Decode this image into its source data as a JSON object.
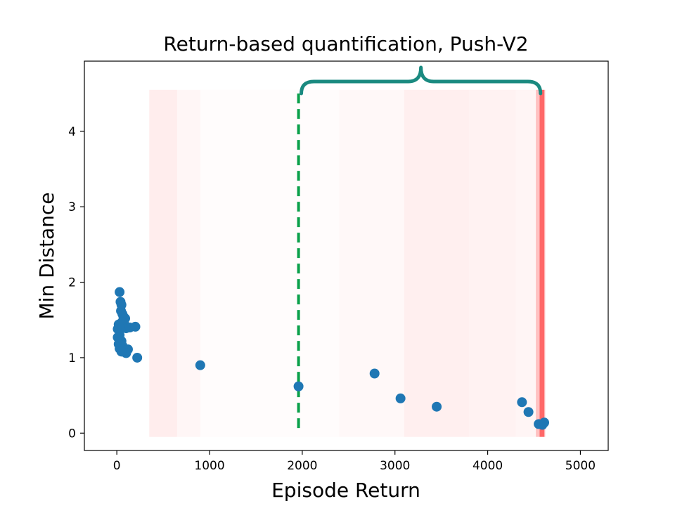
{
  "chart_data": {
    "type": "scatter",
    "title": "Return-based quantification, Push-V2",
    "xlabel": "Episode Return",
    "ylabel": "Min Distance",
    "xlim": [
      -350,
      5300
    ],
    "ylim": [
      -0.23,
      4.93
    ],
    "xticks": [
      0,
      1000,
      2000,
      3000,
      4000,
      5000
    ],
    "yticks": [
      0,
      1,
      2,
      3,
      4
    ],
    "grid": false,
    "point_color": "#1f77b4",
    "threshold_line": {
      "x": 1960,
      "color": "#0aa04a",
      "style": "dashed",
      "y_range": [
        0.05,
        4.5
      ]
    },
    "brace": {
      "x_range": [
        1990,
        4570
      ],
      "color": "#1a8a80"
    },
    "density_band": {
      "color": "#ff4d4d",
      "x_range": [
        350,
        4620
      ],
      "y_range": [
        -0.05,
        4.55
      ],
      "segments": [
        {
          "x": [
            350,
            650
          ],
          "alpha": 0.1
        },
        {
          "x": [
            650,
            900
          ],
          "alpha": 0.05
        },
        {
          "x": [
            900,
            1400
          ],
          "alpha": 0.02
        },
        {
          "x": [
            1400,
            2000
          ],
          "alpha": 0.015
        },
        {
          "x": [
            2000,
            2400
          ],
          "alpha": 0.02
        },
        {
          "x": [
            2400,
            3100
          ],
          "alpha": 0.04
        },
        {
          "x": [
            3100,
            3800
          ],
          "alpha": 0.09
        },
        {
          "x": [
            3800,
            4300
          ],
          "alpha": 0.07
        },
        {
          "x": [
            4300,
            4520
          ],
          "alpha": 0.06
        },
        {
          "x": [
            4520,
            4560
          ],
          "alpha": 0.35
        },
        {
          "x": [
            4560,
            4610
          ],
          "alpha": 0.85
        },
        {
          "x": [
            4610,
            4620
          ],
          "alpha": 0.4
        }
      ]
    },
    "points": [
      {
        "x": 30,
        "y": 1.87
      },
      {
        "x": 40,
        "y": 1.74
      },
      {
        "x": 50,
        "y": 1.7
      },
      {
        "x": 45,
        "y": 1.62
      },
      {
        "x": 60,
        "y": 1.58
      },
      {
        "x": 70,
        "y": 1.55
      },
      {
        "x": 90,
        "y": 1.52
      },
      {
        "x": 55,
        "y": 1.47
      },
      {
        "x": 20,
        "y": 1.44
      },
      {
        "x": 80,
        "y": 1.45
      },
      {
        "x": 10,
        "y": 1.38
      },
      {
        "x": 60,
        "y": 1.4
      },
      {
        "x": 100,
        "y": 1.39
      },
      {
        "x": 140,
        "y": 1.4
      },
      {
        "x": 200,
        "y": 1.41
      },
      {
        "x": 30,
        "y": 1.3
      },
      {
        "x": 10,
        "y": 1.27
      },
      {
        "x": 50,
        "y": 1.22
      },
      {
        "x": 20,
        "y": 1.18
      },
      {
        "x": 60,
        "y": 1.16
      },
      {
        "x": 30,
        "y": 1.12
      },
      {
        "x": 70,
        "y": 1.12
      },
      {
        "x": 120,
        "y": 1.11
      },
      {
        "x": 100,
        "y": 1.06
      },
      {
        "x": 50,
        "y": 1.08
      },
      {
        "x": 220,
        "y": 1.0
      },
      {
        "x": 900,
        "y": 0.9
      },
      {
        "x": 1960,
        "y": 0.62
      },
      {
        "x": 2780,
        "y": 0.79
      },
      {
        "x": 3060,
        "y": 0.46
      },
      {
        "x": 3450,
        "y": 0.35
      },
      {
        "x": 4370,
        "y": 0.41
      },
      {
        "x": 4440,
        "y": 0.28
      },
      {
        "x": 4550,
        "y": 0.12
      },
      {
        "x": 4590,
        "y": 0.11
      },
      {
        "x": 4610,
        "y": 0.14
      }
    ]
  }
}
